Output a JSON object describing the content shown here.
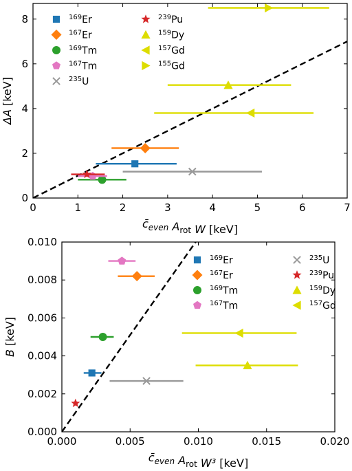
{
  "chart_data": [
    {
      "type": "scatter",
      "panel": "top",
      "xlabel": "c̄_even A_rot W [keV]",
      "ylabel": "ΔA [keV]",
      "xlim": [
        0,
        7
      ],
      "ylim": [
        0,
        8.7
      ],
      "xticks": [
        "0",
        "1",
        "2",
        "3",
        "4",
        "5",
        "6",
        "7"
      ],
      "yticks": [
        "0",
        "2",
        "4",
        "6",
        "8"
      ],
      "legend_position": "top-left",
      "reference_line": {
        "style": "dashed",
        "slope": 1.0,
        "color": "#000000"
      },
      "series": [
        {
          "name": "169Er",
          "mass": "169",
          "element": "Er",
          "marker": "square",
          "color": "#1f77b4",
          "x": 2.27,
          "y": 1.53,
          "xerr": [
            1.4,
            3.2
          ]
        },
        {
          "name": "167Er",
          "mass": "167",
          "element": "Er",
          "marker": "diamond",
          "color": "#ff7f0e",
          "x": 2.5,
          "y": 2.23,
          "xerr": [
            1.75,
            3.25
          ]
        },
        {
          "name": "169Tm",
          "mass": "169",
          "element": "Tm",
          "marker": "circle",
          "color": "#2ca02c",
          "x": 1.54,
          "y": 0.82,
          "xerr": [
            1.0,
            2.08
          ]
        },
        {
          "name": "167Tm",
          "mass": "167",
          "element": "Tm",
          "marker": "pentagon",
          "color": "#e377c2",
          "x": 1.33,
          "y": 0.98,
          "xerr": [
            1.0,
            1.65
          ]
        },
        {
          "name": "235U",
          "mass": "235",
          "element": "U",
          "marker": "x",
          "color": "#999999",
          "x": 3.55,
          "y": 1.18,
          "xerr": [
            2.0,
            5.1
          ]
        },
        {
          "name": "239Pu",
          "mass": "239",
          "element": "Pu",
          "marker": "star",
          "color": "#d62728",
          "x": 1.2,
          "y": 1.06,
          "xerr": [
            0.85,
            1.6
          ]
        },
        {
          "name": "159Dy",
          "mass": "159",
          "element": "Dy",
          "marker": "triangle-up",
          "color": "#dddd00",
          "x": 4.35,
          "y": 5.05,
          "xerr": [
            3.0,
            5.75
          ]
        },
        {
          "name": "157Gd",
          "mass": "157",
          "element": "Gd",
          "marker": "triangle-left",
          "color": "#dddd00",
          "x": 4.85,
          "y": 3.8,
          "xerr": [
            2.7,
            6.25
          ]
        },
        {
          "name": "155Gd",
          "mass": "155",
          "element": "Gd",
          "marker": "triangle-right",
          "color": "#dddd00",
          "x": 5.25,
          "y": 8.5,
          "xerr": [
            3.9,
            6.6
          ]
        }
      ]
    },
    {
      "type": "scatter",
      "panel": "bottom",
      "xlabel": "c̄_even A_rot W³ [keV]",
      "ylabel": "B [keV]",
      "xlim": [
        0,
        0.02
      ],
      "ylim": [
        0,
        0.01
      ],
      "xticks": [
        "0.000",
        "0.005",
        "0.010",
        "0.015",
        "0.020"
      ],
      "yticks": [
        "0.000",
        "0.002",
        "0.004",
        "0.006",
        "0.008",
        "0.010"
      ],
      "legend_position": "top-right",
      "reference_line": {
        "style": "dashed",
        "slope": 1.02,
        "color": "#000000"
      },
      "series": [
        {
          "name": "169Er",
          "mass": "169",
          "element": "Er",
          "marker": "square",
          "color": "#1f77b4",
          "x": 0.0022,
          "y": 0.0031,
          "xerr": [
            0.0016,
            0.0029
          ]
        },
        {
          "name": "167Er",
          "mass": "167",
          "element": "Er",
          "marker": "diamond",
          "color": "#ff7f0e",
          "x": 0.0055,
          "y": 0.0082,
          "xerr": [
            0.0041,
            0.0068
          ]
        },
        {
          "name": "169Tm",
          "mass": "169",
          "element": "Tm",
          "marker": "circle",
          "color": "#2ca02c",
          "x": 0.003,
          "y": 0.005,
          "xerr": [
            0.0021,
            0.0038
          ]
        },
        {
          "name": "167Tm",
          "mass": "167",
          "element": "Tm",
          "marker": "pentagon",
          "color": "#e377c2",
          "x": 0.0044,
          "y": 0.009,
          "xerr": [
            0.0034,
            0.0054
          ]
        },
        {
          "name": "235U",
          "mass": "235",
          "element": "U",
          "marker": "x",
          "color": "#999999",
          "x": 0.0062,
          "y": 0.00268,
          "xerr": [
            0.0035,
            0.0089
          ]
        },
        {
          "name": "239Pu",
          "mass": "239",
          "element": "Pu",
          "marker": "star",
          "color": "#d62728",
          "x": 0.001,
          "y": 0.0015,
          "xerr": null
        },
        {
          "name": "159Dy",
          "mass": "159",
          "element": "Dy",
          "marker": "triangle-up",
          "color": "#dddd00",
          "x": 0.0136,
          "y": 0.0035,
          "xerr": [
            0.0098,
            0.0173
          ]
        },
        {
          "name": "157Gd",
          "mass": "157",
          "element": "Gd",
          "marker": "triangle-left",
          "color": "#dddd00",
          "x": 0.013,
          "y": 0.0052,
          "xerr": [
            0.0088,
            0.0172
          ]
        }
      ]
    }
  ]
}
